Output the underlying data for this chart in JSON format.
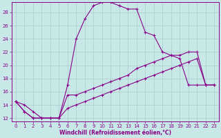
{
  "xlabel": "Windchill (Refroidissement éolien,°C)",
  "bg_color": "#c8e8e8",
  "line_color": "#880088",
  "grid_color": "#aacccc",
  "xlim": [
    -0.5,
    23.5
  ],
  "ylim": [
    11.5,
    29.5
  ],
  "xticks": [
    0,
    1,
    2,
    3,
    4,
    5,
    6,
    7,
    8,
    9,
    10,
    11,
    12,
    13,
    14,
    15,
    16,
    17,
    18,
    19,
    20,
    21,
    22,
    23
  ],
  "yticks": [
    12,
    14,
    16,
    18,
    20,
    22,
    24,
    26,
    28
  ],
  "line1_x": [
    0,
    1,
    2,
    3,
    4,
    5,
    6,
    7,
    8,
    9,
    10,
    11,
    12,
    13,
    14,
    15,
    16,
    17,
    18,
    19,
    20,
    21,
    22,
    23
  ],
  "line1_y": [
    14.5,
    14.0,
    13.0,
    12.0,
    12.0,
    12.0,
    17.0,
    24.0,
    27.0,
    29.0,
    29.5,
    29.5,
    29.0,
    28.5,
    28.5,
    25.0,
    24.5,
    22.0,
    21.5,
    21.0,
    17.0,
    17.0,
    17.0,
    17.0
  ],
  "line2_x": [
    0,
    1,
    2,
    3,
    4,
    5,
    6,
    7,
    8,
    9,
    10,
    11,
    12,
    13,
    14,
    15,
    16,
    17,
    18,
    19,
    20,
    21,
    22,
    23
  ],
  "line2_y": [
    14.5,
    13.0,
    12.0,
    12.0,
    12.0,
    12.0,
    15.5,
    15.5,
    16.0,
    16.5,
    17.0,
    17.5,
    18.0,
    18.5,
    19.5,
    20.0,
    20.5,
    21.0,
    21.5,
    21.5,
    22.0,
    22.0,
    17.0,
    17.0
  ],
  "line3_x": [
    0,
    1,
    2,
    3,
    4,
    5,
    6,
    7,
    8,
    9,
    10,
    11,
    12,
    13,
    14,
    15,
    16,
    17,
    18,
    19,
    20,
    21,
    22,
    23
  ],
  "line3_y": [
    14.5,
    13.0,
    12.0,
    12.0,
    12.0,
    12.0,
    13.5,
    14.0,
    14.5,
    15.0,
    15.5,
    16.0,
    16.5,
    17.0,
    17.5,
    18.0,
    18.5,
    19.0,
    19.5,
    20.0,
    20.5,
    21.0,
    17.0,
    17.0
  ],
  "markersize": 3,
  "linewidth": 0.8
}
